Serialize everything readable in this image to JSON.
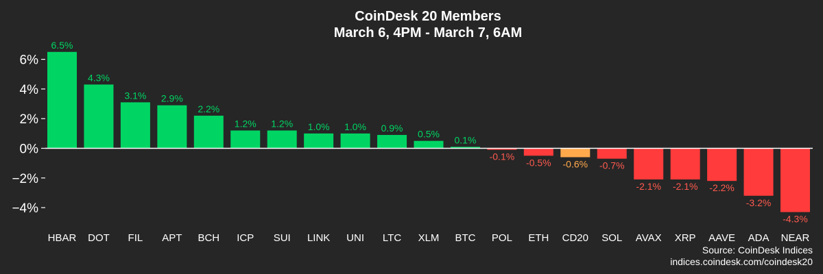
{
  "chart_data": {
    "type": "bar",
    "title": "CoinDesk 20 Members",
    "subtitle": "March 6, 4PM - March 7, 6AM",
    "xlabel": "",
    "ylabel": "",
    "ylim": [
      -5,
      7
    ],
    "yticks": [
      6,
      4,
      2,
      0,
      -2,
      -4
    ],
    "ytick_labels": [
      "6%",
      "4%",
      "2%",
      "0%",
      "−2%",
      "−4%"
    ],
    "grid": false,
    "categories": [
      "HBAR",
      "DOT",
      "FIL",
      "APT",
      "BCH",
      "ICP",
      "SUI",
      "LINK",
      "UNI",
      "LTC",
      "XLM",
      "BTC",
      "POL",
      "ETH",
      "CD20",
      "SOL",
      "AVAX",
      "XRP",
      "AAVE",
      "ADA",
      "NEAR"
    ],
    "values": [
      6.5,
      4.3,
      3.1,
      2.9,
      2.2,
      1.2,
      1.2,
      1.0,
      1.0,
      0.9,
      0.5,
      0.1,
      -0.1,
      -0.5,
      -0.6,
      -0.7,
      -2.1,
      -2.1,
      -2.2,
      -3.2,
      -4.3
    ],
    "labels": [
      "6.5%",
      "4.3%",
      "3.1%",
      "2.9%",
      "2.2%",
      "1.2%",
      "1.2%",
      "1.0%",
      "1.0%",
      "0.9%",
      "0.5%",
      "0.1%",
      "-0.1%",
      "-0.5%",
      "-0.6%",
      "-0.7%",
      "-2.1%",
      "-2.1%",
      "-2.2%",
      "-3.2%",
      "-4.3%"
    ],
    "highlight_category": "CD20",
    "colors": {
      "positive": "#00d563",
      "negative": "#ff3b3b",
      "highlight": "#ffa94d",
      "positive_label": "#00d563",
      "negative_label": "#ff5a4f",
      "highlight_label": "#ffa94d",
      "background": "#262626",
      "axis": "#ffffff"
    }
  },
  "source": {
    "line1": "Source: CoinDesk Indices",
    "line2": "indices.coindesk.com/coindesk20"
  }
}
